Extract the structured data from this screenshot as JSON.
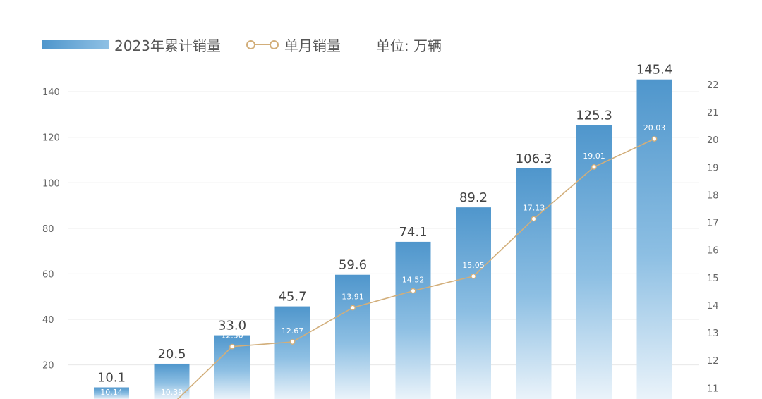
{
  "legend": {
    "bar_label": "2023年累计销量",
    "line_label": "单月销量",
    "unit": "单位: 万辆"
  },
  "colors": {
    "bar_top": "#4f96cc",
    "bar_bottom": "#eaf3fa",
    "line": "#d2ae7a",
    "grid": "#e8e8e8"
  },
  "chart_data": {
    "type": "bar",
    "categories": [
      "",
      "",
      "",
      "",
      "",
      "",
      "",
      "",
      "",
      ""
    ],
    "series": [
      {
        "name": "2023年累计销量",
        "type": "bar",
        "axis": "left",
        "values": [
          10.1,
          20.5,
          33.0,
          45.7,
          59.6,
          74.1,
          89.2,
          106.3,
          125.3,
          145.4
        ],
        "labels": [
          "10.1",
          "20.5",
          "33.0",
          "45.7",
          "59.6",
          "74.1",
          "89.2",
          "106.3",
          "125.3",
          "145.4"
        ]
      },
      {
        "name": "单月销量",
        "type": "line",
        "axis": "right",
        "values": [
          10.14,
          10.39,
          12.5,
          12.67,
          13.91,
          14.52,
          15.05,
          17.13,
          19.01,
          20.03
        ],
        "labels": [
          "10.14",
          "10.39",
          "12.50",
          "12.67",
          "13.91",
          "14.52",
          "15.05",
          "17.13",
          "19.01",
          "20.03"
        ]
      }
    ],
    "y_left": {
      "ticks": [
        "20",
        "40",
        "60",
        "80",
        "100",
        "120",
        "140"
      ],
      "tick_values": [
        20,
        40,
        60,
        80,
        100,
        120,
        140
      ],
      "range": [
        5,
        145
      ]
    },
    "y_right": {
      "ticks": [
        "11",
        "12",
        "13",
        "14",
        "15",
        "16",
        "17",
        "18",
        "19",
        "20",
        "21",
        "22"
      ],
      "tick_values": [
        11,
        12,
        13,
        14,
        15,
        16,
        17,
        18,
        19,
        20,
        21,
        22
      ],
      "range": [
        10.6,
        22.1
      ]
    },
    "grid": true,
    "legend_position": "top-left",
    "title": "",
    "xlabel": "",
    "ylabel": ""
  }
}
